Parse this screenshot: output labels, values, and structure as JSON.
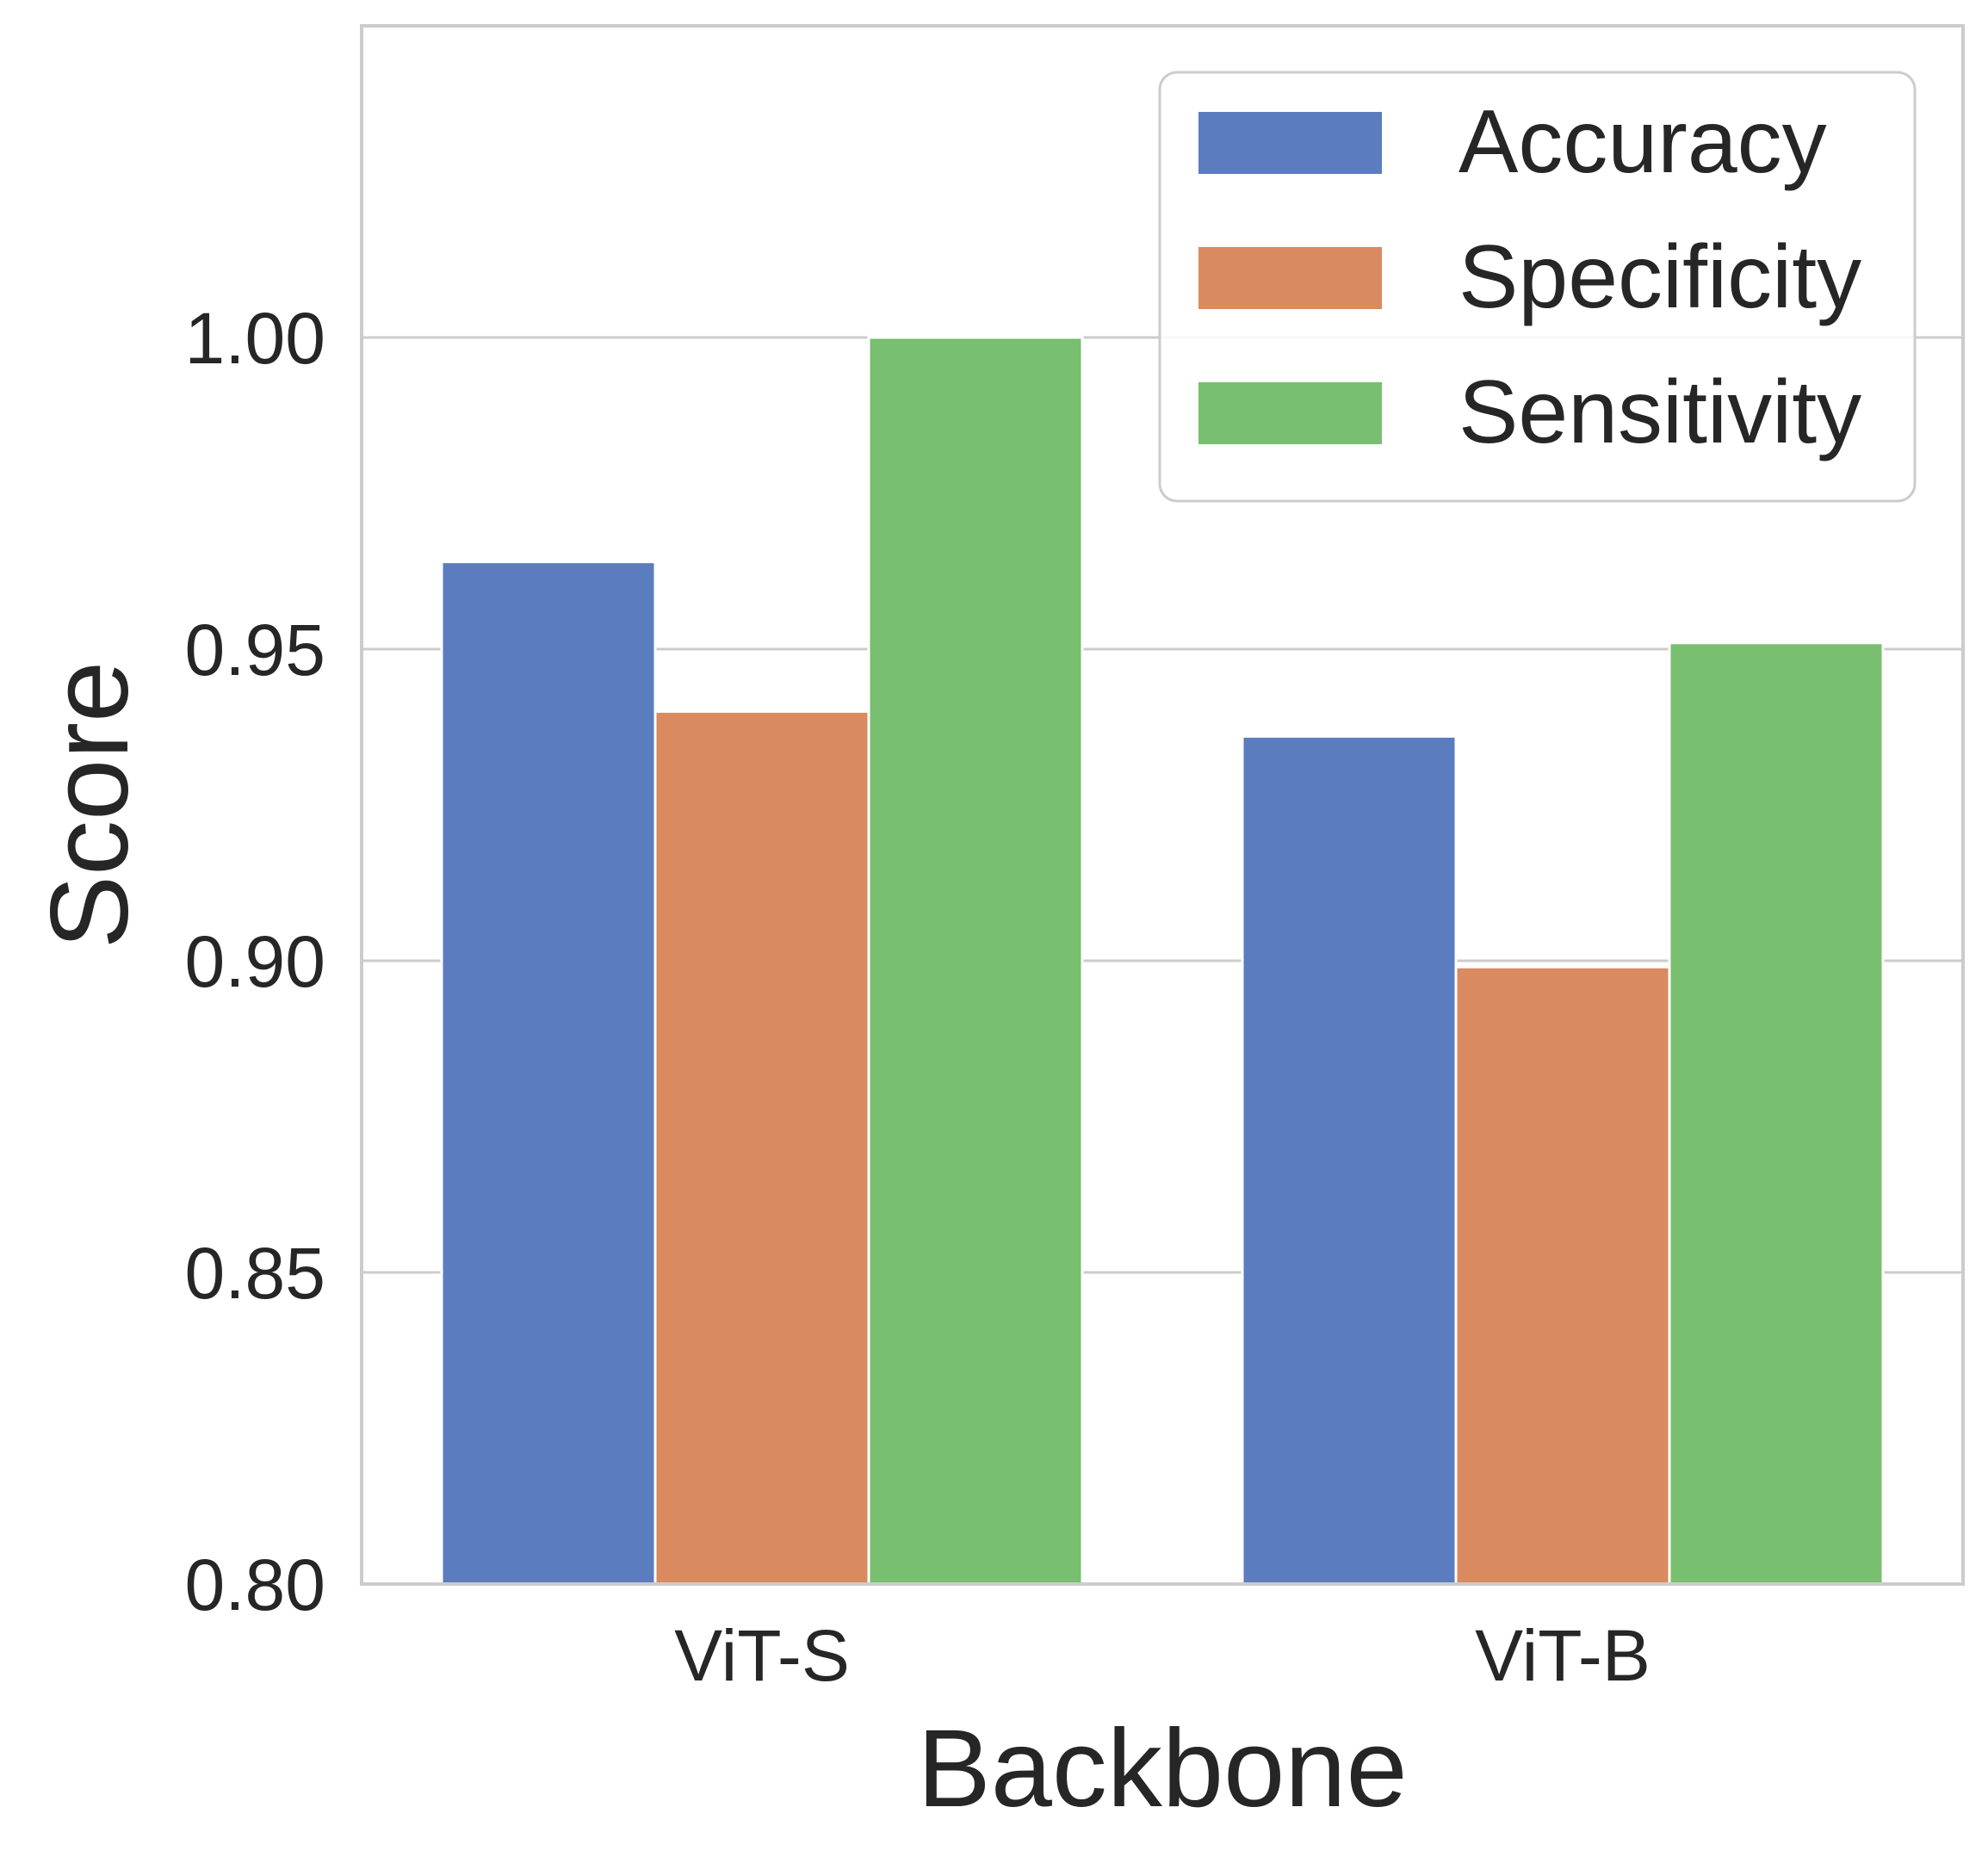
{
  "chart_data": {
    "type": "bar",
    "categories": [
      "ViT-S",
      "ViT-B"
    ],
    "series": [
      {
        "name": "Accuracy",
        "values": [
          0.964,
          0.936
        ],
        "color": "#5b7dbf"
      },
      {
        "name": "Specificity",
        "values": [
          0.94,
          0.899
        ],
        "color": "#d98a5f"
      },
      {
        "name": "Sensitivity",
        "values": [
          1.0,
          0.951
        ],
        "color": "#78bf70"
      }
    ],
    "xlabel": "Backbone",
    "ylabel": "Score",
    "ylim": [
      0.8,
      1.05
    ],
    "yticks": [
      "0.80",
      "0.85",
      "0.90",
      "0.95",
      "1.00"
    ],
    "grid": true,
    "legend": "top-right"
  }
}
